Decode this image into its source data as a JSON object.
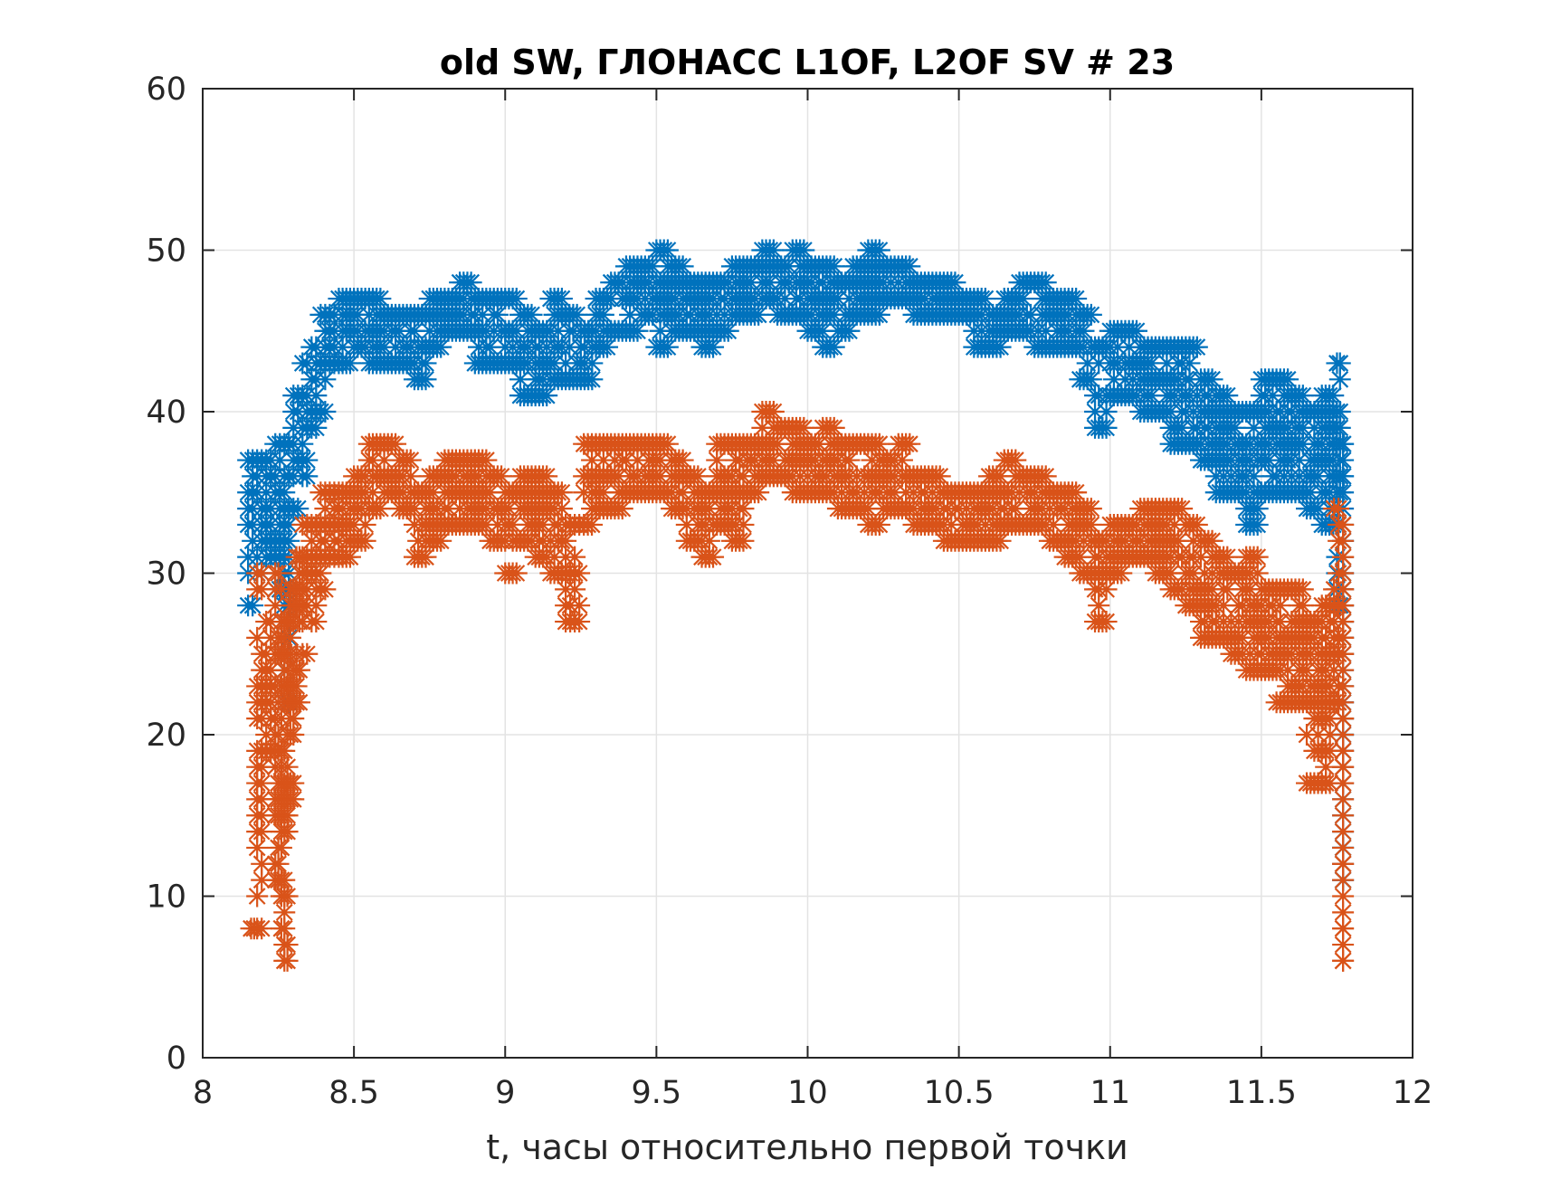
{
  "chart_data": {
    "type": "scatter",
    "title": "old SW, ГЛОНАСС L1OF, L2OF SV # 23",
    "xlabel": "t, часы относительно первой точки",
    "ylabel": "",
    "xlim": [
      8,
      12
    ],
    "ylim": [
      0,
      60
    ],
    "xticks": [
      8,
      8.5,
      9,
      9.5,
      10,
      10.5,
      11,
      11.5,
      12
    ],
    "xtick_labels": [
      "8",
      "8.5",
      "9",
      "9.5",
      "10",
      "10.5",
      "11",
      "11.5",
      "12"
    ],
    "yticks": [
      0,
      10,
      20,
      30,
      40,
      50,
      60
    ],
    "ytick_labels": [
      "0",
      "10",
      "20",
      "30",
      "40",
      "50",
      "60"
    ],
    "grid": true,
    "legend": null,
    "marker": "asterisk",
    "series": [
      {
        "name": "L1OF",
        "color": "#0072BD",
        "envelope": [
          [
            8.15,
            28,
            37
          ],
          [
            8.18,
            30,
            37
          ],
          [
            8.21,
            31,
            37
          ],
          [
            8.24,
            29,
            38
          ],
          [
            8.27,
            22,
            38
          ],
          [
            8.3,
            34,
            41
          ],
          [
            8.33,
            36,
            43
          ],
          [
            8.36,
            39,
            44
          ],
          [
            8.39,
            40,
            46
          ],
          [
            8.42,
            43,
            46
          ],
          [
            8.45,
            43,
            47
          ],
          [
            8.5,
            44,
            47
          ],
          [
            8.55,
            43,
            47
          ],
          [
            8.6,
            43,
            46
          ],
          [
            8.65,
            43,
            46
          ],
          [
            8.7,
            42,
            46
          ],
          [
            8.75,
            44,
            47
          ],
          [
            8.8,
            45,
            47
          ],
          [
            8.85,
            45,
            48
          ],
          [
            8.9,
            43,
            47
          ],
          [
            8.95,
            43,
            47
          ],
          [
            9.0,
            43,
            47
          ],
          [
            9.05,
            41,
            46
          ],
          [
            9.1,
            41,
            45
          ],
          [
            9.15,
            42,
            47
          ],
          [
            9.2,
            42,
            46
          ],
          [
            9.25,
            42,
            45
          ],
          [
            9.3,
            44,
            47
          ],
          [
            9.35,
            45,
            48
          ],
          [
            9.4,
            45,
            49
          ],
          [
            9.45,
            46,
            49
          ],
          [
            9.5,
            44,
            50
          ],
          [
            9.55,
            45,
            49
          ],
          [
            9.6,
            45,
            48
          ],
          [
            9.65,
            44,
            48
          ],
          [
            9.7,
            45,
            48
          ],
          [
            9.75,
            46,
            49
          ],
          [
            9.8,
            46,
            49
          ],
          [
            9.85,
            47,
            50
          ],
          [
            9.9,
            46,
            49
          ],
          [
            9.95,
            46,
            50
          ],
          [
            10.0,
            45,
            49
          ],
          [
            10.05,
            44,
            49
          ],
          [
            10.1,
            45,
            48
          ],
          [
            10.15,
            46,
            49
          ],
          [
            10.2,
            46,
            50
          ],
          [
            10.25,
            47,
            49
          ],
          [
            10.3,
            47,
            49
          ],
          [
            10.35,
            46,
            48
          ],
          [
            10.4,
            46,
            48
          ],
          [
            10.45,
            46,
            48
          ],
          [
            10.5,
            46,
            47
          ],
          [
            10.55,
            44,
            47
          ],
          [
            10.6,
            44,
            46
          ],
          [
            10.65,
            45,
            47
          ],
          [
            10.7,
            45,
            48
          ],
          [
            10.75,
            44,
            48
          ],
          [
            10.8,
            44,
            47
          ],
          [
            10.85,
            44,
            47
          ],
          [
            10.9,
            42,
            46
          ],
          [
            10.95,
            39,
            44
          ],
          [
            11.0,
            41,
            45
          ],
          [
            11.05,
            41,
            45
          ],
          [
            11.1,
            40,
            44
          ],
          [
            11.15,
            40,
            44
          ],
          [
            11.2,
            38,
            44
          ],
          [
            11.25,
            38,
            44
          ],
          [
            11.3,
            37,
            42
          ],
          [
            11.35,
            35,
            41
          ],
          [
            11.4,
            35,
            40
          ],
          [
            11.45,
            33,
            40
          ],
          [
            11.5,
            35,
            42
          ],
          [
            11.55,
            35,
            42
          ],
          [
            11.6,
            35,
            41
          ],
          [
            11.65,
            34,
            40
          ],
          [
            11.7,
            33,
            41
          ],
          [
            11.75,
            28,
            43
          ],
          [
            11.77,
            11,
            38
          ]
        ]
      },
      {
        "name": "L2OF",
        "color": "#D95319",
        "envelope": [
          [
            8.16,
            8,
            8
          ],
          [
            8.18,
            8,
            30
          ],
          [
            8.21,
            19,
            27
          ],
          [
            8.24,
            11,
            30
          ],
          [
            8.26,
            8,
            29
          ],
          [
            8.27,
            6,
            27
          ],
          [
            8.29,
            16,
            29
          ],
          [
            8.31,
            22,
            31
          ],
          [
            8.33,
            25,
            33
          ],
          [
            8.36,
            27,
            33
          ],
          [
            8.39,
            29,
            35
          ],
          [
            8.42,
            31,
            35
          ],
          [
            8.45,
            31,
            35
          ],
          [
            8.5,
            32,
            36
          ],
          [
            8.55,
            34,
            38
          ],
          [
            8.6,
            35,
            38
          ],
          [
            8.65,
            34,
            37
          ],
          [
            8.7,
            31,
            35
          ],
          [
            8.75,
            32,
            36
          ],
          [
            8.8,
            33,
            37
          ],
          [
            8.85,
            33,
            37
          ],
          [
            8.9,
            33,
            37
          ],
          [
            8.95,
            32,
            36
          ],
          [
            9.0,
            30,
            35
          ],
          [
            9.05,
            32,
            36
          ],
          [
            9.1,
            31,
            36
          ],
          [
            9.15,
            30,
            35
          ],
          [
            9.2,
            27,
            33
          ],
          [
            9.23,
            27,
            33
          ],
          [
            9.26,
            33,
            38
          ],
          [
            9.3,
            34,
            38
          ],
          [
            9.35,
            34,
            38
          ],
          [
            9.4,
            35,
            38
          ],
          [
            9.45,
            35,
            38
          ],
          [
            9.5,
            35,
            38
          ],
          [
            9.55,
            34,
            37
          ],
          [
            9.6,
            32,
            36
          ],
          [
            9.65,
            31,
            35
          ],
          [
            9.7,
            33,
            38
          ],
          [
            9.75,
            32,
            38
          ],
          [
            9.8,
            35,
            38
          ],
          [
            9.85,
            36,
            40
          ],
          [
            9.9,
            36,
            39
          ],
          [
            9.95,
            35,
            39
          ],
          [
            10.0,
            35,
            38
          ],
          [
            10.05,
            35,
            39
          ],
          [
            10.1,
            34,
            38
          ],
          [
            10.15,
            34,
            38
          ],
          [
            10.2,
            33,
            38
          ],
          [
            10.25,
            34,
            37
          ],
          [
            10.3,
            34,
            38
          ],
          [
            10.35,
            33,
            36
          ],
          [
            10.4,
            33,
            36
          ],
          [
            10.45,
            32,
            35
          ],
          [
            10.5,
            32,
            35
          ],
          [
            10.55,
            32,
            35
          ],
          [
            10.6,
            32,
            36
          ],
          [
            10.65,
            33,
            37
          ],
          [
            10.7,
            33,
            36
          ],
          [
            10.75,
            33,
            36
          ],
          [
            10.8,
            32,
            35
          ],
          [
            10.85,
            31,
            35
          ],
          [
            10.9,
            30,
            34
          ],
          [
            10.95,
            27,
            32
          ],
          [
            11.0,
            30,
            33
          ],
          [
            11.05,
            31,
            33
          ],
          [
            11.1,
            31,
            34
          ],
          [
            11.15,
            30,
            34
          ],
          [
            11.2,
            29,
            34
          ],
          [
            11.25,
            28,
            33
          ],
          [
            11.3,
            26,
            32
          ],
          [
            11.35,
            26,
            31
          ],
          [
            11.4,
            25,
            30
          ],
          [
            11.45,
            24,
            31
          ],
          [
            11.5,
            24,
            29
          ],
          [
            11.55,
            22,
            29
          ],
          [
            11.6,
            22,
            29
          ],
          [
            11.65,
            17,
            27
          ],
          [
            11.7,
            17,
            28
          ],
          [
            11.74,
            22,
            34
          ],
          [
            11.77,
            6,
            33
          ]
        ]
      }
    ]
  }
}
